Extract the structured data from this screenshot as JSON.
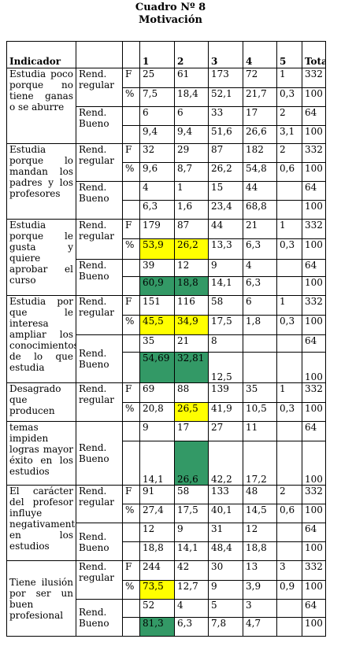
{
  "title": "Cuadro Nº 8",
  "subtitle": "Motivación",
  "header": {
    "indicador": "Indicador",
    "c1": "1",
    "c2": "2",
    "c3": "3",
    "c4": "4",
    "c5": "5",
    "total": "Total"
  },
  "colors": {
    "yellow": "#ffff00",
    "green": "#339966"
  },
  "indicators": [
    {
      "label": "Estudia poco porque no tiene ganas o se aburre",
      "regular": {
        "group": "Rend. regular",
        "f": [
          "F",
          "25",
          "61",
          "173",
          "72",
          "1",
          "332"
        ],
        "p": [
          "%",
          "7,5",
          "18,4",
          "52,1",
          "21,7",
          "0,3",
          "100"
        ]
      },
      "bueno": {
        "group": "Rend. Bueno",
        "f": [
          "",
          "6",
          "6",
          "33",
          "17",
          "2",
          "64"
        ],
        "p": [
          "",
          "9,4",
          "9,4",
          "51,6",
          "26,6",
          "3,1",
          "100"
        ]
      }
    },
    {
      "label": "Estudia porque lo mandan los padres y los profesores",
      "regular": {
        "group": "Rend. regular",
        "f": [
          "F",
          "32",
          "29",
          "87",
          "182",
          "2",
          "332"
        ],
        "p": [
          "%",
          "9,6",
          "8,7",
          "26,2",
          "54,8",
          "0,6",
          "100"
        ]
      },
      "bueno": {
        "group": "Rend. Bueno",
        "f": [
          "",
          "4",
          "1",
          "15",
          "44",
          "",
          "64"
        ],
        "p": [
          "",
          "6,3",
          "1,6",
          "23,4",
          "68,8",
          "",
          "100"
        ]
      }
    },
    {
      "label": "Estudia porque le gusta y quiere aprobar el curso",
      "regular": {
        "group": "Rend. regular",
        "f": [
          "F",
          "179",
          "87",
          "44",
          "21",
          "1",
          "332"
        ],
        "p": [
          "%",
          "53,9",
          "26,2",
          "13,3",
          "6,3",
          "0,3",
          "100"
        ]
      },
      "bueno": {
        "group": "Rend. Bueno",
        "f": [
          "",
          "39",
          "12",
          "9",
          "4",
          "",
          "64"
        ],
        "p": [
          "",
          "60,9",
          "18,8",
          "14,1",
          "6,3",
          "",
          "100"
        ]
      }
    },
    {
      "label": "Estudia por que le interesa ampliar los conocimientos de lo que estudia",
      "regular": {
        "group": "Rend. regular",
        "f": [
          "F",
          "151",
          "116",
          "58",
          "6",
          "1",
          "332"
        ],
        "p": [
          "%",
          "45,5",
          "34,9",
          "17,5",
          "1,8",
          "0,3",
          "100"
        ]
      },
      "bueno": {
        "group": "Rend. Bueno",
        "f": [
          "",
          "35",
          "21",
          "8",
          "",
          "",
          "64"
        ],
        "p": [
          "",
          "54,69",
          "32,81",
          "12,5",
          "",
          "",
          "100"
        ]
      }
    },
    {
      "label": "Desagrado que producen",
      "regular": {
        "group": "Rend. regular",
        "f": [
          "F",
          "69",
          "88",
          "139",
          "35",
          "1",
          "332"
        ],
        "p": [
          "%",
          "20,8",
          "26,5",
          "41,9",
          "10,5",
          "0,3",
          "100"
        ]
      }
    },
    {
      "label": "temas impiden logras mayor éxito en los estudios",
      "bueno": {
        "group": "Rend. Bueno",
        "f": [
          "",
          "9",
          "17",
          "27",
          "11",
          "",
          "64"
        ],
        "p": [
          "",
          "14,1",
          "26,6",
          "42,2",
          "17,2",
          "",
          "100"
        ]
      }
    },
    {
      "label": "El carácter del profesor influye negativamente en los estudios",
      "regular": {
        "group": "Rend. regular",
        "f": [
          "F",
          "91",
          "58",
          "133",
          "48",
          "2",
          "332"
        ],
        "p": [
          "%",
          "27,4",
          "17,5",
          "40,1",
          "14,5",
          "0,6",
          "100"
        ]
      },
      "bueno": {
        "group": "Rend. Bueno",
        "f": [
          "",
          "12",
          "9",
          "31",
          "12",
          "",
          "64"
        ],
        "p": [
          "",
          "18,8",
          "14,1",
          "48,4",
          "18,8",
          "",
          "100"
        ]
      }
    },
    {
      "label": "Tiene ilusión por ser un buen profesional",
      "regular": {
        "group": "Rend. regular",
        "f": [
          "F",
          "244",
          "42",
          "30",
          "13",
          "3",
          "332"
        ],
        "p": [
          "%",
          "73,5",
          "12,7",
          "9",
          "3,9",
          "0,9",
          "100"
        ]
      },
      "bueno": {
        "group": "Rend. Bueno",
        "f": [
          "",
          "52",
          "4",
          "5",
          "3",
          "",
          "64"
        ],
        "p": [
          "",
          "81,3",
          "6,3",
          "7,8",
          "4,7",
          "",
          "100"
        ]
      }
    }
  ]
}
